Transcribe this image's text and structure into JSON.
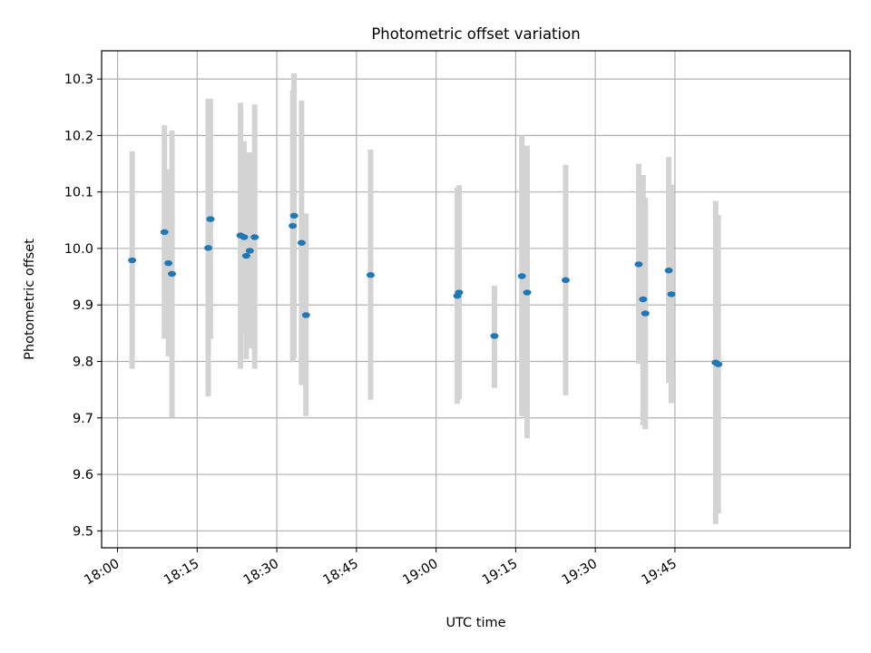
{
  "chart_data": {
    "type": "scatter",
    "title": "Photometric offset variation",
    "xlabel": "UTC time",
    "ylabel": "Photometric offset",
    "x_ticks": [
      "18:00",
      "18:15",
      "18:30",
      "18:45",
      "19:00",
      "19:15",
      "19:30",
      "19:45"
    ],
    "xlim": [
      "17:57",
      "20:18"
    ],
    "y_ticks": [
      "9.5",
      "9.6",
      "9.7",
      "9.8",
      "9.9",
      "10.0",
      "10.1",
      "10.2",
      "10.3"
    ],
    "ylim": [
      9.47,
      10.35
    ],
    "grid": true,
    "colors": {
      "point": "#1f77b4",
      "errorbar": "#d3d3d3",
      "grid": "#b0b0b0"
    },
    "points": [
      {
        "x": "18:02:45",
        "y": 9.979,
        "ylo": 9.787,
        "yhi": 10.172
      },
      {
        "x": "18:08:50",
        "y": 10.029,
        "ylo": 9.84,
        "yhi": 10.218
      },
      {
        "x": "18:09:35",
        "y": 9.974,
        "ylo": 9.809,
        "yhi": 10.14
      },
      {
        "x": "18:10:15",
        "y": 9.955,
        "ylo": 9.701,
        "yhi": 10.209
      },
      {
        "x": "18:17:05",
        "y": 10.001,
        "ylo": 9.738,
        "yhi": 10.265
      },
      {
        "x": "18:17:30",
        "y": 10.052,
        "ylo": 9.84,
        "yhi": 10.265
      },
      {
        "x": "18:23:10",
        "y": 10.023,
        "ylo": 9.787,
        "yhi": 10.258
      },
      {
        "x": "18:23:50",
        "y": 10.02,
        "ylo": 9.849,
        "yhi": 10.19
      },
      {
        "x": "18:24:15",
        "y": 9.987,
        "ylo": 9.804,
        "yhi": 10.17
      },
      {
        "x": "18:24:55",
        "y": 9.996,
        "ylo": 9.823,
        "yhi": 10.17
      },
      {
        "x": "18:25:50",
        "y": 10.02,
        "ylo": 9.787,
        "yhi": 10.255
      },
      {
        "x": "18:33:00",
        "y": 10.04,
        "ylo": 9.8,
        "yhi": 10.28
      },
      {
        "x": "18:33:15",
        "y": 10.058,
        "ylo": 9.806,
        "yhi": 10.31
      },
      {
        "x": "18:34:40",
        "y": 10.01,
        "ylo": 9.758,
        "yhi": 10.262
      },
      {
        "x": "18:35:30",
        "y": 9.882,
        "ylo": 9.703,
        "yhi": 10.062
      },
      {
        "x": "18:47:40",
        "y": 9.953,
        "ylo": 9.732,
        "yhi": 10.175
      },
      {
        "x": "19:04:00",
        "y": 9.916,
        "ylo": 9.725,
        "yhi": 10.108
      },
      {
        "x": "19:04:20",
        "y": 9.922,
        "ylo": 9.733,
        "yhi": 10.112
      },
      {
        "x": "19:11:00",
        "y": 9.845,
        "ylo": 9.753,
        "yhi": 9.934
      },
      {
        "x": "19:16:10",
        "y": 9.951,
        "ylo": 9.703,
        "yhi": 10.2
      },
      {
        "x": "19:17:10",
        "y": 9.922,
        "ylo": 9.664,
        "yhi": 10.182
      },
      {
        "x": "19:24:25",
        "y": 9.944,
        "ylo": 9.74,
        "yhi": 10.148
      },
      {
        "x": "19:38:10",
        "y": 9.972,
        "ylo": 9.796,
        "yhi": 10.15
      },
      {
        "x": "19:39:00",
        "y": 9.91,
        "ylo": 9.687,
        "yhi": 10.13
      },
      {
        "x": "19:39:25",
        "y": 9.885,
        "ylo": 9.68,
        "yhi": 10.09
      },
      {
        "x": "19:43:50",
        "y": 9.961,
        "ylo": 9.762,
        "yhi": 10.162
      },
      {
        "x": "19:44:20",
        "y": 9.919,
        "ylo": 9.726,
        "yhi": 10.113
      },
      {
        "x": "19:52:40",
        "y": 9.798,
        "ylo": 9.512,
        "yhi": 10.084
      },
      {
        "x": "19:53:10",
        "y": 9.795,
        "ylo": 9.531,
        "yhi": 10.059
      }
    ]
  }
}
